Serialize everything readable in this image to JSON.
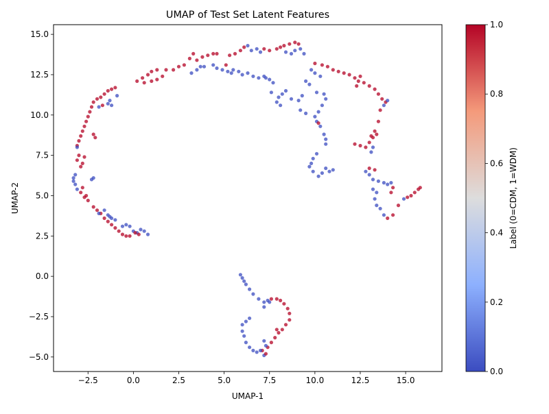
{
  "chart_data": {
    "type": "scatter",
    "title": "UMAP of Test Set Latent Features",
    "xlabel": "UMAP-1",
    "ylabel": "UMAP-2",
    "xlim": [
      -4.4,
      17.0
    ],
    "ylim": [
      -5.9,
      15.6
    ],
    "xticks": [
      -2.5,
      0.0,
      2.5,
      5.0,
      7.5,
      10.0,
      12.5,
      15.0
    ],
    "yticks": [
      -5.0,
      -2.5,
      0.0,
      2.5,
      5.0,
      7.5,
      10.0,
      12.5,
      15.0
    ],
    "xtick_labels": [
      "−2.5",
      "0.0",
      "2.5",
      "5.0",
      "7.5",
      "10.0",
      "12.5",
      "15.0"
    ],
    "ytick_labels": [
      "−5.0",
      "−2.5",
      "0.0",
      "2.5",
      "5.0",
      "7.5",
      "10.0",
      "12.5",
      "15.0"
    ],
    "grid": false,
    "colormap": "coolwarm",
    "colormap_low": "#3b4cc0",
    "colormap_mid": "#dddddd",
    "colormap_high": "#b40426",
    "colorbar": {
      "label": "Label (0=CDM, 1=WDM)",
      "range": [
        0.0,
        1.0
      ],
      "ticks": [
        0.0,
        0.2,
        0.4,
        0.6,
        0.8,
        1.0
      ],
      "tick_labels": [
        "0.0",
        "0.2",
        "0.4",
        "0.6",
        "0.8",
        "1.0"
      ]
    },
    "points": [
      [
        -3.3,
        6.1,
        0
      ],
      [
        -3.2,
        5.7,
        0
      ],
      [
        -3.1,
        5.4,
        0
      ],
      [
        -3.3,
        5.9,
        0
      ],
      [
        -3.2,
        6.3,
        0
      ],
      [
        -2.3,
        6.0,
        0
      ],
      [
        -2.2,
        6.1,
        0
      ],
      [
        -3.1,
        7.2,
        1
      ],
      [
        -3.0,
        7.5,
        1
      ],
      [
        -3.1,
        8.1,
        1
      ],
      [
        -3.0,
        8.4,
        1
      ],
      [
        -2.9,
        8.7,
        1
      ],
      [
        -2.8,
        9.0,
        1
      ],
      [
        -2.7,
        9.3,
        1
      ],
      [
        -2.6,
        9.6,
        1
      ],
      [
        -2.5,
        9.9,
        1
      ],
      [
        -2.4,
        10.2,
        1
      ],
      [
        -2.3,
        10.5,
        1
      ],
      [
        -2.2,
        10.8,
        1
      ],
      [
        -2.8,
        7.0,
        1
      ],
      [
        -2.7,
        7.4,
        1
      ],
      [
        -2.9,
        6.8,
        1
      ],
      [
        -2.2,
        8.8,
        1
      ],
      [
        -2.1,
        8.6,
        1
      ],
      [
        -3.1,
        8.0,
        0
      ],
      [
        -2.0,
        11.0,
        1
      ],
      [
        -1.8,
        11.1,
        1
      ],
      [
        -1.6,
        11.3,
        1
      ],
      [
        -1.4,
        11.5,
        1
      ],
      [
        -1.2,
        11.6,
        1
      ],
      [
        -1.0,
        11.7,
        1
      ],
      [
        -1.3,
        10.9,
        0
      ],
      [
        -1.4,
        10.7,
        0
      ],
      [
        -1.2,
        10.6,
        0
      ],
      [
        -0.9,
        11.2,
        0
      ],
      [
        -1.9,
        10.5,
        0
      ],
      [
        -1.7,
        10.6,
        1
      ],
      [
        -2.9,
        5.2,
        1
      ],
      [
        -2.7,
        4.9,
        1
      ],
      [
        -2.5,
        4.7,
        1
      ],
      [
        -2.8,
        5.5,
        1
      ],
      [
        -2.6,
        5.0,
        1
      ],
      [
        -2.2,
        4.3,
        1
      ],
      [
        -2.0,
        4.1,
        1
      ],
      [
        -1.8,
        3.9,
        1
      ],
      [
        -1.6,
        3.6,
        1
      ],
      [
        -1.4,
        3.4,
        1
      ],
      [
        -1.2,
        3.2,
        1
      ],
      [
        -1.0,
        3.0,
        1
      ],
      [
        -0.8,
        2.8,
        1
      ],
      [
        -0.6,
        2.6,
        1
      ],
      [
        -0.4,
        2.5,
        1
      ],
      [
        -0.2,
        2.5,
        1
      ],
      [
        -1.6,
        4.1,
        0
      ],
      [
        -1.4,
        3.8,
        0
      ],
      [
        -1.2,
        3.6,
        0
      ],
      [
        -1.0,
        3.5,
        0
      ],
      [
        -1.9,
        3.9,
        0
      ],
      [
        -1.3,
        3.7,
        0
      ],
      [
        -0.6,
        3.1,
        0
      ],
      [
        -0.4,
        3.2,
        0
      ],
      [
        -0.2,
        3.1,
        0
      ],
      [
        0.0,
        2.8,
        0
      ],
      [
        0.2,
        2.7,
        0
      ],
      [
        0.4,
        2.9,
        0
      ],
      [
        0.6,
        2.8,
        0
      ],
      [
        0.8,
        2.6,
        0
      ],
      [
        0.1,
        2.7,
        1
      ],
      [
        0.3,
        2.6,
        1
      ],
      [
        0.2,
        12.1,
        1
      ],
      [
        0.5,
        12.3,
        1
      ],
      [
        0.8,
        12.5,
        1
      ],
      [
        1.0,
        12.7,
        1
      ],
      [
        1.3,
        12.8,
        1
      ],
      [
        0.6,
        12.0,
        1
      ],
      [
        1.0,
        12.1,
        1
      ],
      [
        1.3,
        12.2,
        1
      ],
      [
        1.6,
        12.4,
        1
      ],
      [
        1.8,
        12.8,
        1
      ],
      [
        2.2,
        12.8,
        1
      ],
      [
        2.5,
        13.0,
        1
      ],
      [
        2.8,
        13.1,
        1
      ],
      [
        3.1,
        13.5,
        1
      ],
      [
        3.3,
        13.8,
        1
      ],
      [
        3.5,
        13.4,
        1
      ],
      [
        3.8,
        13.6,
        1
      ],
      [
        4.1,
        13.7,
        1
      ],
      [
        4.4,
        13.8,
        1
      ],
      [
        4.6,
        13.8,
        1
      ],
      [
        3.2,
        12.6,
        0
      ],
      [
        3.5,
        12.8,
        0
      ],
      [
        3.7,
        13.0,
        0
      ],
      [
        3.9,
        13.0,
        0
      ],
      [
        4.4,
        13.1,
        0
      ],
      [
        4.6,
        12.9,
        0
      ],
      [
        4.9,
        12.8,
        0
      ],
      [
        5.2,
        12.7,
        0
      ],
      [
        5.4,
        12.6,
        0
      ],
      [
        5.1,
        13.1,
        1
      ],
      [
        5.3,
        13.7,
        1
      ],
      [
        5.6,
        13.8,
        1
      ],
      [
        5.9,
        14.0,
        1
      ],
      [
        6.1,
        14.2,
        1
      ],
      [
        6.3,
        14.3,
        0
      ],
      [
        6.5,
        14.0,
        0
      ],
      [
        6.8,
        14.1,
        0
      ],
      [
        7.0,
        13.9,
        0
      ],
      [
        7.2,
        14.1,
        1
      ],
      [
        7.5,
        14.0,
        1
      ],
      [
        7.9,
        14.1,
        1
      ],
      [
        8.1,
        14.2,
        1
      ],
      [
        8.3,
        14.3,
        1
      ],
      [
        8.6,
        14.4,
        1
      ],
      [
        8.9,
        14.5,
        1
      ],
      [
        9.1,
        14.4,
        1
      ],
      [
        8.4,
        13.9,
        0
      ],
      [
        8.7,
        13.8,
        0
      ],
      [
        8.9,
        14.0,
        0
      ],
      [
        9.2,
        14.1,
        0
      ],
      [
        9.4,
        13.8,
        0
      ],
      [
        5.8,
        12.7,
        0
      ],
      [
        6.0,
        12.5,
        0
      ],
      [
        6.3,
        12.6,
        0
      ],
      [
        6.6,
        12.4,
        0
      ],
      [
        6.9,
        12.3,
        0
      ],
      [
        7.2,
        12.4,
        0
      ],
      [
        7.5,
        12.2,
        0
      ],
      [
        7.7,
        12.0,
        0
      ],
      [
        5.5,
        12.8,
        0
      ],
      [
        7.3,
        12.3,
        0
      ],
      [
        7.6,
        11.4,
        0
      ],
      [
        8.0,
        11.1,
        0
      ],
      [
        8.2,
        11.3,
        0
      ],
      [
        7.9,
        10.8,
        0
      ],
      [
        8.1,
        10.6,
        0
      ],
      [
        8.4,
        11.5,
        0
      ],
      [
        8.7,
        11.0,
        0
      ],
      [
        9.1,
        10.9,
        0
      ],
      [
        9.3,
        11.2,
        0
      ],
      [
        9.5,
        12.1,
        0
      ],
      [
        9.7,
        11.9,
        0
      ],
      [
        9.2,
        10.3,
        0
      ],
      [
        9.5,
        10.1,
        0
      ],
      [
        9.8,
        12.8,
        0
      ],
      [
        10.0,
        12.6,
        0
      ],
      [
        10.3,
        12.4,
        0
      ],
      [
        10.1,
        11.4,
        0
      ],
      [
        10.5,
        11.3,
        0
      ],
      [
        10.6,
        11.0,
        0
      ],
      [
        10.4,
        10.6,
        0
      ],
      [
        10.2,
        10.2,
        0
      ],
      [
        10.0,
        9.9,
        0
      ],
      [
        10.1,
        9.6,
        0
      ],
      [
        10.3,
        9.3,
        0
      ],
      [
        10.2,
        9.5,
        1
      ],
      [
        10.5,
        8.8,
        0
      ],
      [
        10.6,
        8.5,
        0
      ],
      [
        10.6,
        8.2,
        0
      ],
      [
        10.0,
        13.2,
        1
      ],
      [
        10.4,
        13.1,
        1
      ],
      [
        10.7,
        13.0,
        1
      ],
      [
        11.0,
        12.8,
        1
      ],
      [
        11.3,
        12.7,
        1
      ],
      [
        11.6,
        12.6,
        1
      ],
      [
        11.9,
        12.5,
        1
      ],
      [
        12.2,
        12.3,
        1
      ],
      [
        12.4,
        12.1,
        1
      ],
      [
        12.7,
        12.0,
        1
      ],
      [
        13.0,
        11.8,
        1
      ],
      [
        13.3,
        11.6,
        1
      ],
      [
        13.5,
        11.3,
        1
      ],
      [
        13.7,
        11.0,
        1
      ],
      [
        13.9,
        10.8,
        1
      ],
      [
        12.3,
        11.8,
        1
      ],
      [
        12.5,
        12.4,
        1
      ],
      [
        13.8,
        10.6,
        0
      ],
      [
        14.0,
        10.9,
        0
      ],
      [
        13.6,
        10.3,
        1
      ],
      [
        13.5,
        9.6,
        1
      ],
      [
        13.3,
        9.0,
        1
      ],
      [
        13.1,
        8.7,
        1
      ],
      [
        13.0,
        8.3,
        1
      ],
      [
        12.8,
        8.0,
        1
      ],
      [
        12.5,
        8.1,
        1
      ],
      [
        12.2,
        8.2,
        1
      ],
      [
        13.2,
        8.6,
        1
      ],
      [
        13.4,
        8.8,
        1
      ],
      [
        13.2,
        8.0,
        0
      ],
      [
        13.1,
        7.7,
        0
      ],
      [
        10.1,
        7.6,
        0
      ],
      [
        9.9,
        7.3,
        0
      ],
      [
        9.8,
        7.0,
        0
      ],
      [
        9.7,
        6.8,
        0
      ],
      [
        9.9,
        6.5,
        0
      ],
      [
        10.6,
        6.7,
        0
      ],
      [
        10.8,
        6.5,
        0
      ],
      [
        11.0,
        6.6,
        0
      ],
      [
        10.4,
        6.4,
        0
      ],
      [
        10.2,
        6.2,
        0
      ],
      [
        12.8,
        6.5,
        0
      ],
      [
        13.0,
        6.3,
        0
      ],
      [
        13.2,
        6.0,
        0
      ],
      [
        13.5,
        5.9,
        0
      ],
      [
        13.8,
        5.8,
        0
      ],
      [
        14.0,
        5.7,
        0
      ],
      [
        13.2,
        5.4,
        0
      ],
      [
        13.4,
        5.2,
        0
      ],
      [
        13.3,
        4.8,
        0
      ],
      [
        13.4,
        4.4,
        0
      ],
      [
        13.6,
        4.2,
        0
      ],
      [
        14.2,
        5.8,
        0
      ],
      [
        13.8,
        3.8,
        0
      ],
      [
        14.3,
        5.5,
        1
      ],
      [
        14.2,
        5.2,
        1
      ],
      [
        14.0,
        3.6,
        1
      ],
      [
        14.3,
        3.8,
        1
      ],
      [
        14.6,
        4.4,
        1
      ],
      [
        14.9,
        4.8,
        0
      ],
      [
        15.1,
        4.9,
        1
      ],
      [
        15.3,
        5.0,
        1
      ],
      [
        15.5,
        5.2,
        1
      ],
      [
        15.7,
        5.4,
        1
      ],
      [
        15.8,
        5.5,
        1
      ],
      [
        13.3,
        6.6,
        1
      ],
      [
        13.0,
        6.7,
        1
      ],
      [
        5.9,
        0.1,
        0
      ],
      [
        6.0,
        -0.1,
        0
      ],
      [
        6.1,
        -0.3,
        0
      ],
      [
        6.2,
        -0.5,
        0
      ],
      [
        6.4,
        -0.8,
        0
      ],
      [
        6.6,
        -1.1,
        0
      ],
      [
        6.9,
        -1.4,
        0
      ],
      [
        7.2,
        -1.6,
        0
      ],
      [
        7.4,
        -1.5,
        0
      ],
      [
        7.6,
        -1.4,
        1
      ],
      [
        7.9,
        -1.4,
        1
      ],
      [
        8.1,
        -1.5,
        1
      ],
      [
        8.3,
        -1.7,
        1
      ],
      [
        8.5,
        -2.0,
        1
      ],
      [
        8.6,
        -2.3,
        1
      ],
      [
        8.6,
        -2.7,
        1
      ],
      [
        8.4,
        -3.0,
        1
      ],
      [
        8.2,
        -3.3,
        1
      ],
      [
        8.0,
        -3.5,
        1
      ],
      [
        7.8,
        -3.8,
        1
      ],
      [
        7.6,
        -4.1,
        1
      ],
      [
        7.4,
        -4.4,
        1
      ],
      [
        7.1,
        -4.6,
        1
      ],
      [
        7.9,
        -3.3,
        1
      ],
      [
        7.2,
        -4.9,
        0
      ],
      [
        7.0,
        -4.6,
        0
      ],
      [
        6.8,
        -4.7,
        0
      ],
      [
        6.6,
        -4.6,
        0
      ],
      [
        6.4,
        -4.4,
        0
      ],
      [
        6.2,
        -4.1,
        0
      ],
      [
        6.1,
        -3.7,
        0
      ],
      [
        6.0,
        -3.4,
        0
      ],
      [
        6.0,
        -3.0,
        0
      ],
      [
        6.2,
        -2.8,
        0
      ],
      [
        6.4,
        -2.6,
        0
      ],
      [
        7.2,
        -4.0,
        0
      ],
      [
        7.3,
        -4.3,
        0
      ],
      [
        7.2,
        -1.9,
        0
      ],
      [
        7.5,
        -1.6,
        0
      ],
      [
        7.3,
        -4.8,
        1
      ]
    ]
  }
}
